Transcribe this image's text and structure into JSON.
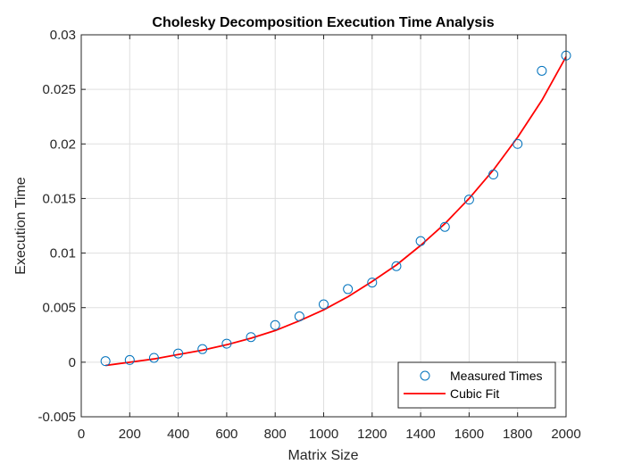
{
  "chart_data": {
    "type": "scatter",
    "title": "Cholesky Decomposition Execution Time Analysis",
    "xlabel": "Matrix Size",
    "ylabel": "Execution Time",
    "xlim": [
      0,
      2000
    ],
    "ylim": [
      -0.005,
      0.03
    ],
    "xticks": [
      0,
      200,
      400,
      600,
      800,
      1000,
      1200,
      1400,
      1600,
      1800,
      2000
    ],
    "xtick_labels": [
      "0",
      "200",
      "400",
      "600",
      "800",
      "1000",
      "1200",
      "1400",
      "1600",
      "1800",
      "2000"
    ],
    "yticks": [
      -0.005,
      0,
      0.005,
      0.01,
      0.015,
      0.02,
      0.025,
      0.03
    ],
    "ytick_labels": [
      "-0.005",
      "0",
      "0.005",
      "0.01",
      "0.015",
      "0.02",
      "0.025",
      "0.03"
    ],
    "grid": true,
    "legend_position": "bottom-right",
    "series": [
      {
        "name": "Measured Times",
        "kind": "markers",
        "marker": "circle",
        "color": "#0072BD",
        "x": [
          100,
          200,
          300,
          400,
          500,
          600,
          700,
          800,
          900,
          1000,
          1100,
          1200,
          1300,
          1400,
          1500,
          1600,
          1700,
          1800,
          1900,
          2000
        ],
        "y": [
          0.0001,
          0.0002,
          0.0004,
          0.0008,
          0.0012,
          0.0017,
          0.0023,
          0.0034,
          0.0042,
          0.0053,
          0.0067,
          0.0073,
          0.0088,
          0.0111,
          0.0124,
          0.0149,
          0.0172,
          0.02,
          0.0267,
          0.0281
        ]
      },
      {
        "name": "Cubic Fit",
        "kind": "line",
        "color": "#FF0000",
        "x": [
          100,
          200,
          300,
          400,
          500,
          600,
          700,
          800,
          900,
          1000,
          1100,
          1200,
          1300,
          1400,
          1500,
          1600,
          1700,
          1800,
          1900,
          2000
        ],
        "y": [
          -0.0003,
          0.0,
          0.0003,
          0.0007,
          0.0011,
          0.0016,
          0.0022,
          0.0029,
          0.0038,
          0.0048,
          0.006,
          0.0074,
          0.0089,
          0.0107,
          0.0127,
          0.015,
          0.0176,
          0.0206,
          0.024,
          0.028
        ]
      }
    ]
  }
}
